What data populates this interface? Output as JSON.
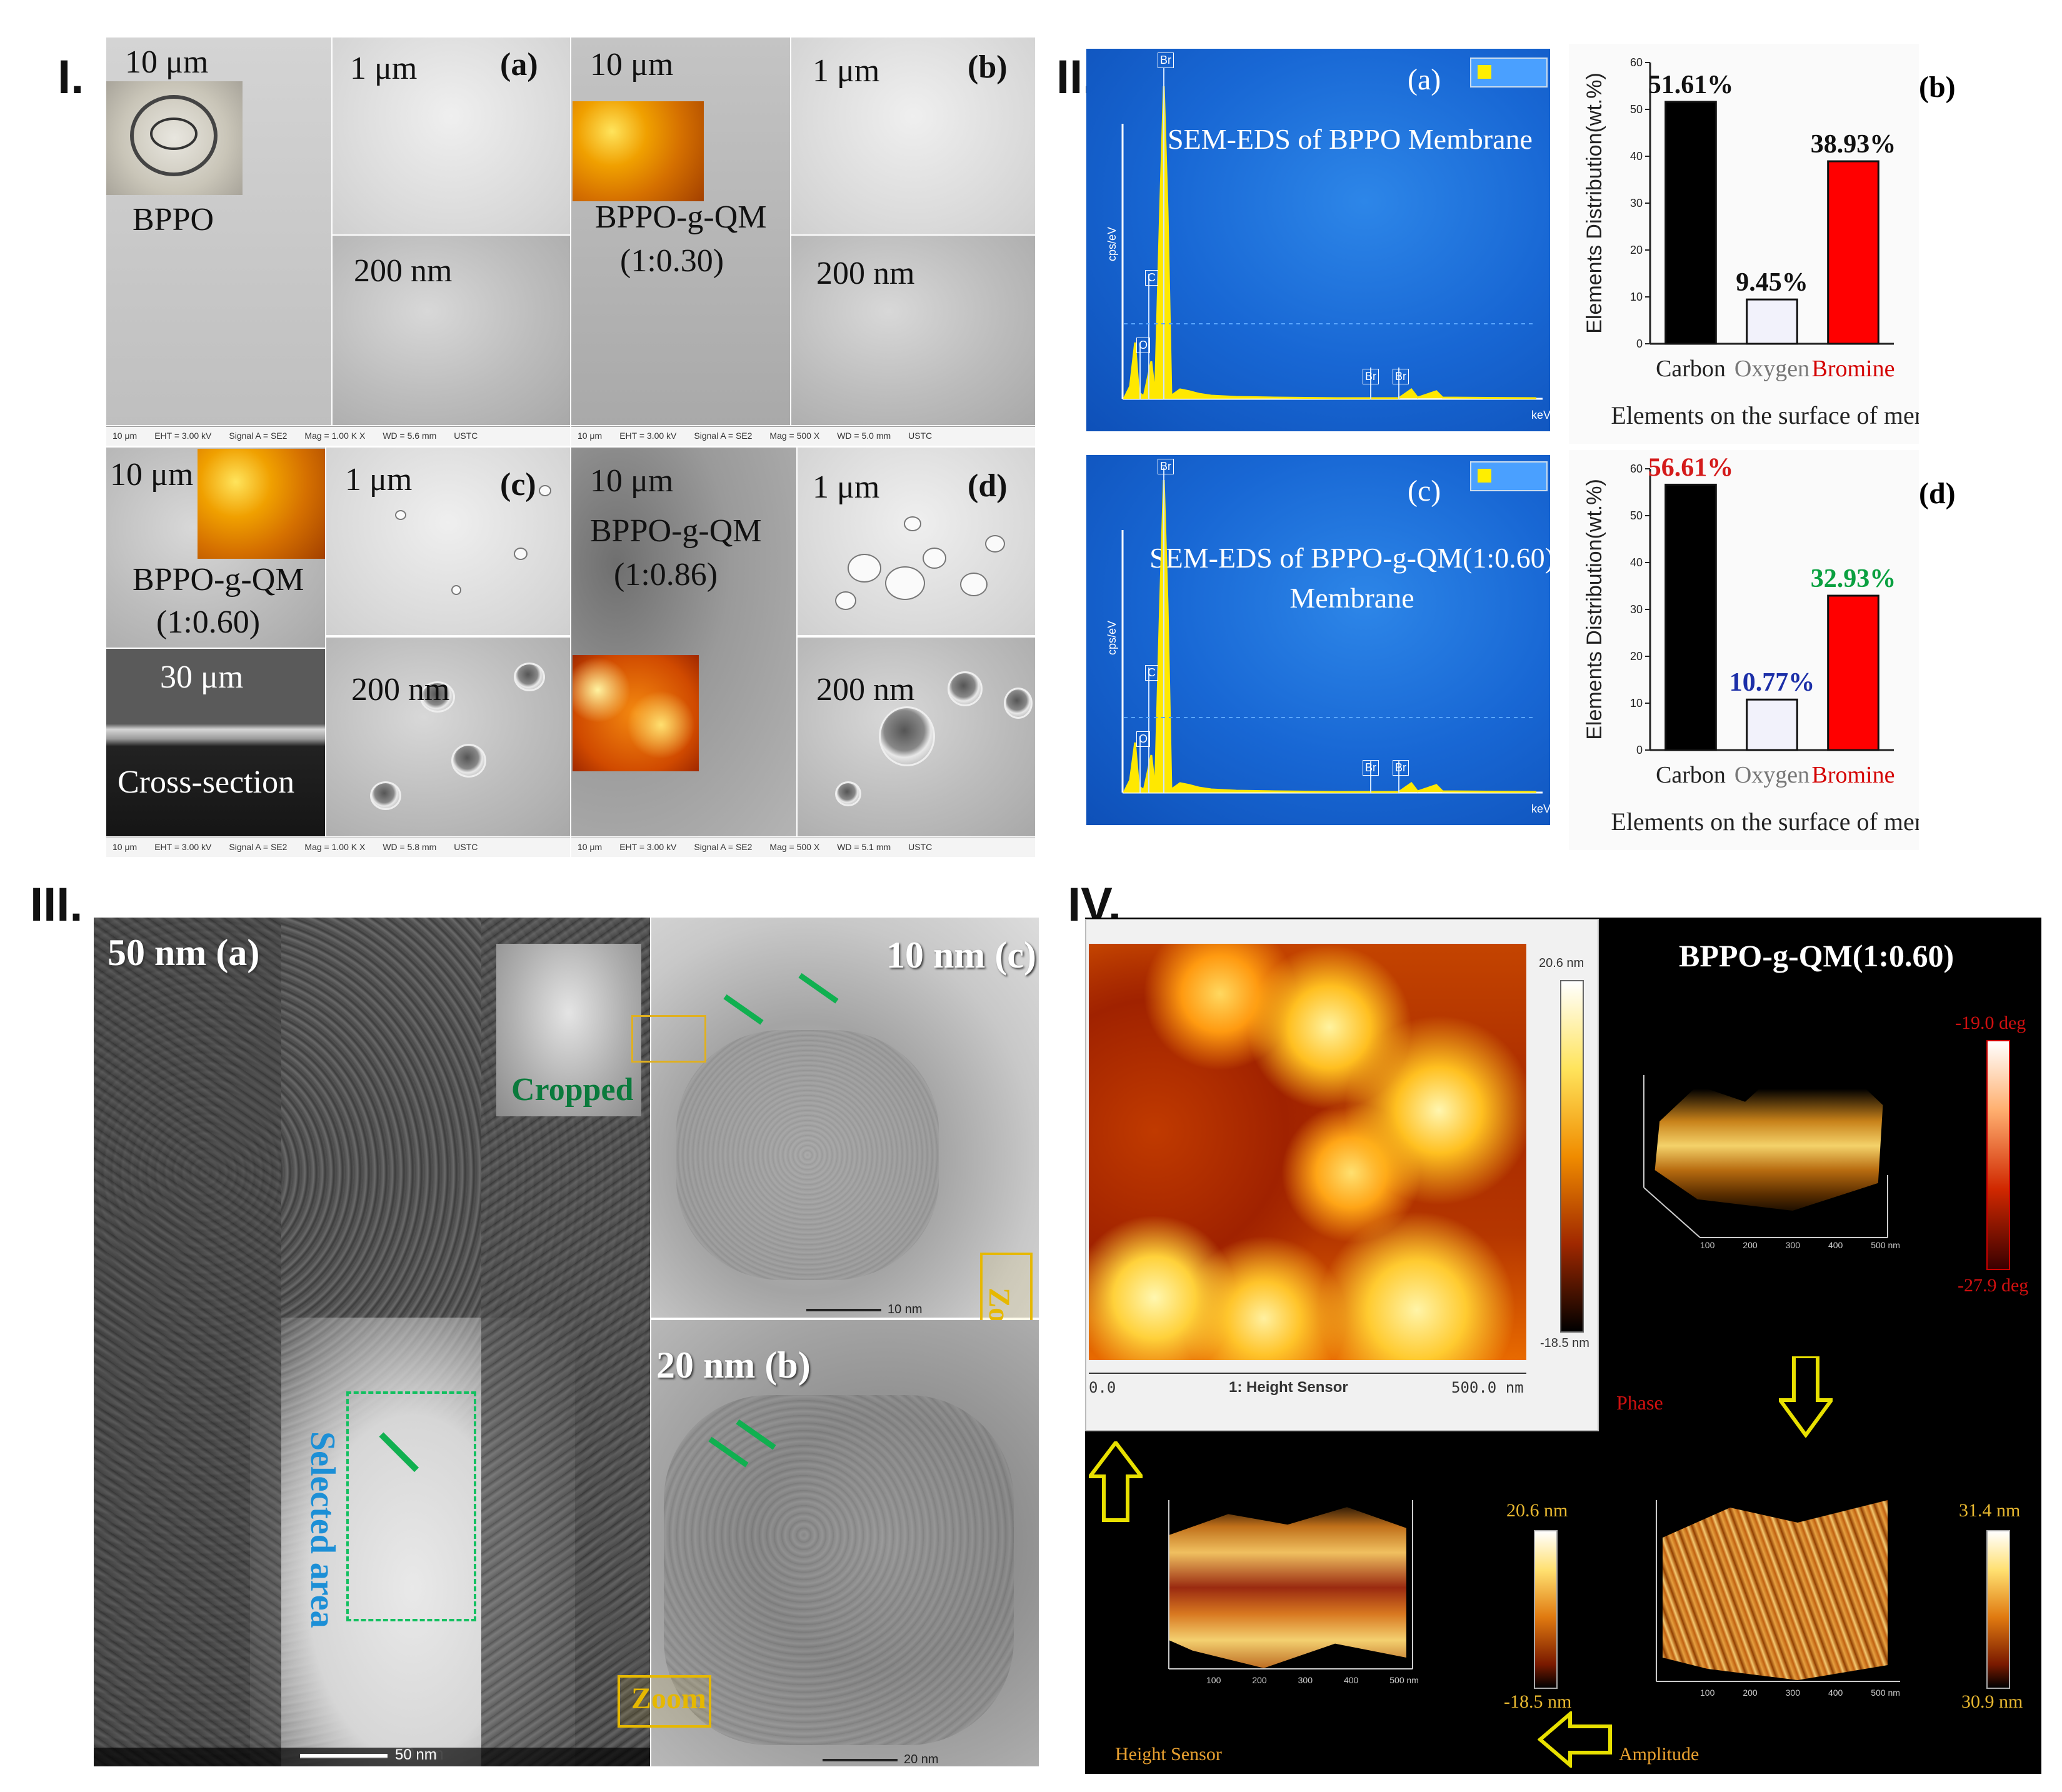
{
  "panel_I": {
    "label": "I.",
    "tile_a": {
      "tag": "(a)",
      "scale_top": "10 μm",
      "scale_mid": "1 μm",
      "scale_low": "200 nm",
      "name": "BPPO"
    },
    "tile_b": {
      "tag": "(b)",
      "scale_top": "10 μm",
      "scale_mid": "1 μm",
      "scale_low": "200 nm",
      "name_line1": "BPPO-g-QM",
      "name_line2": "(1:0.30)"
    },
    "tile_c": {
      "tag": "(c)",
      "scale_top": "10 μm",
      "scale_mid": "1 μm",
      "scale_low": "200 nm",
      "name_line1": "BPPO-g-QM",
      "name_line2": "(1:0.60)",
      "cross_scale": "30 μm",
      "cross_label": "Cross-section"
    },
    "tile_d": {
      "tag": "(d)",
      "scale_top": "10 μm",
      "scale_mid": "1 μm",
      "scale_low": "200 nm",
      "name_line1": "BPPO-g-QM",
      "name_line2": "(1:0.86)"
    },
    "infobar_top_left": [
      "10 μm",
      "EHT = 3.00 kV",
      "Signal A = SE2",
      "Mag = 1.00 K X",
      "WD = 5.6 mm",
      "USTC"
    ],
    "infobar_top_right": [
      "10 μm",
      "EHT = 3.00 kV",
      "Signal A = SE2",
      "Mag = 500 X",
      "WD = 5.0 mm",
      "USTC"
    ],
    "infobar_bot_left": [
      "10 μm",
      "EHT = 3.00 kV",
      "Signal A = SE2",
      "Mag = 1.00 K X",
      "WD = 5.8 mm",
      "USTC"
    ],
    "infobar_bot_right": [
      "10 μm",
      "EHT = 3.00 kV",
      "Signal A = SE2",
      "Mag = 500 X",
      "WD = 5.1 mm",
      "USTC"
    ]
  },
  "panel_II": {
    "label": "II.",
    "eds_a": {
      "tag": "(a)",
      "title": "SEM-EDS of BPPO Membrane",
      "yaxis": "cps/eV",
      "xunit": "keV"
    },
    "eds_c": {
      "tag": "(c)",
      "title_line1": "SEM-EDS of BPPO-g-QM(1:0.60)",
      "title_line2": "Membrane",
      "yaxis": "cps/eV",
      "xunit": "keV"
    },
    "peaks": {
      "c": "C",
      "o": "O",
      "br1": "Br",
      "br2": "Br",
      "br3": "Br"
    }
  },
  "panel_III": {
    "label": "III.",
    "tem_a_label": "50 nm (a)",
    "tem_b_label": "20 nm (b)",
    "tem_c_label": "10 nm (c)",
    "cropped": "Cropped",
    "selected_area": "Selected area",
    "zoom1": "Zoom",
    "zoom2": "Zoom",
    "scale_a": "50 nm",
    "scale_b": "20 nm",
    "scale_c": "10 nm"
  },
  "panel_IV": {
    "label": "IV.",
    "title": "BPPO-g-QM(1:0.60)",
    "height_max": "20.6 nm",
    "height_min": "-18.5 nm",
    "axis_start": "0.0",
    "axis_end": "500.0 nm",
    "axis_caption": "1: Height Sensor",
    "phase_max": "-19.0 deg",
    "phase_min": "-27.9 deg",
    "phase_label": "Phase",
    "hs_max": "20.6 nm",
    "hs_min": "-18.5 nm",
    "hs_label": "Height Sensor",
    "amp_max": "31.4 nm",
    "amp_min": "30.9 nm",
    "amp_label": "Amplitude",
    "tick_labels": [
      "100",
      "200",
      "300",
      "400",
      "500 nm"
    ]
  },
  "chart_data": [
    {
      "type": "bar",
      "panel": "(b)",
      "categories": [
        "Carbon",
        "Oxygen",
        "Bromine"
      ],
      "values": [
        51.61,
        9.45,
        38.93
      ],
      "value_labels": [
        "51.61%",
        "9.45%",
        "38.93%"
      ],
      "colors": [
        "#000000",
        "#f2f2fb",
        "#ff0000"
      ],
      "label_colors": [
        "#111111",
        "#111111",
        "#111111"
      ],
      "category_colors": [
        "#222222",
        "#777777",
        "#d40000"
      ],
      "ylabel": "Elements Distribution(wt.%)",
      "xlabel": "Elements on the surface of membrane",
      "ylim": [
        0,
        60
      ],
      "yticks": [
        0,
        10,
        20,
        30,
        40,
        50,
        60
      ]
    },
    {
      "type": "bar",
      "panel": "(d)",
      "categories": [
        "Carbon",
        "Oxygen",
        "Bromine"
      ],
      "values": [
        56.61,
        10.77,
        32.93
      ],
      "value_labels": [
        "56.61%",
        "10.77%",
        "32.93%"
      ],
      "colors": [
        "#000000",
        "#f2f2fb",
        "#ff0000"
      ],
      "label_colors": [
        "#d41a1a",
        "#1c2fa8",
        "#0aa040"
      ],
      "category_colors": [
        "#222222",
        "#777777",
        "#d40000"
      ],
      "ylabel": "Elements Distribution(wt.%)",
      "xlabel": "Elements on the surface of membrane",
      "ylim": [
        0,
        60
      ],
      "yticks": [
        0,
        10,
        20,
        30,
        40,
        50,
        60
      ]
    }
  ]
}
